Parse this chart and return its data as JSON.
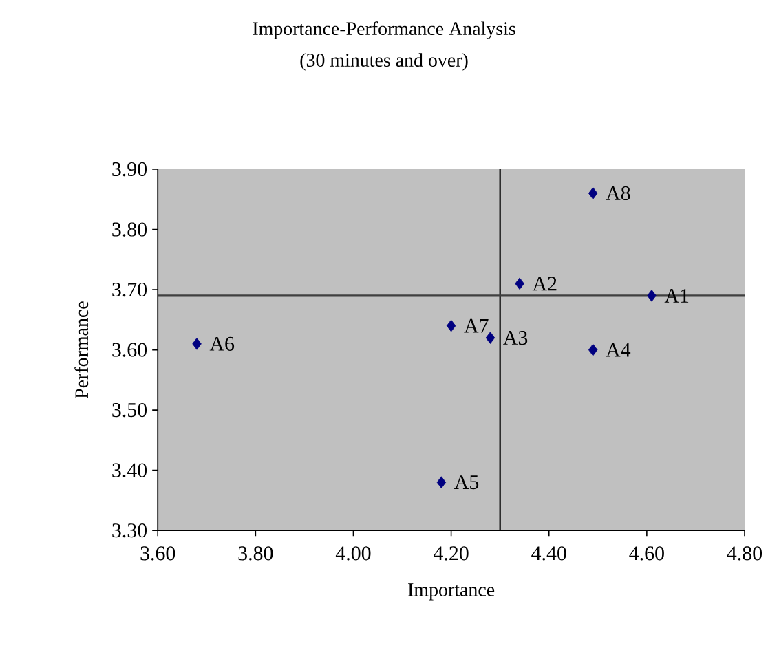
{
  "chart_data": {
    "type": "scatter",
    "title": "Importance-Performance Analysis",
    "subtitle": "(30 minutes and over)",
    "xlabel": "Importance",
    "ylabel": "Performance",
    "x": [
      4.61,
      4.34,
      4.28,
      4.49,
      4.18,
      3.68,
      4.2,
      4.49
    ],
    "values": [
      3.69,
      3.71,
      3.62,
      3.6,
      3.38,
      3.61,
      3.64,
      3.86
    ],
    "color": "#000080",
    "marker": "diamond",
    "xlim": [
      3.6,
      4.8
    ],
    "xticks": [
      {
        "value": 3.6,
        "label": "3.60"
      },
      {
        "value": 3.8,
        "label": "3.80"
      },
      {
        "value": 4.0,
        "label": "4.00"
      },
      {
        "value": 4.2,
        "label": "4.20"
      },
      {
        "value": 4.4,
        "label": "4.40"
      },
      {
        "value": 4.6,
        "label": "4.60"
      },
      {
        "value": 4.8,
        "label": "4.80"
      }
    ],
    "ylim": [
      3.3,
      3.9
    ],
    "yticks": [
      {
        "value": 3.3,
        "label": "3.30"
      },
      {
        "value": 3.4,
        "label": "3.40"
      },
      {
        "value": 3.5,
        "label": "3.50"
      },
      {
        "value": 3.6,
        "label": "3.60"
      },
      {
        "value": 3.7,
        "label": "3.70"
      },
      {
        "value": 3.8,
        "label": "3.80"
      },
      {
        "value": 3.9,
        "label": "3.90"
      }
    ],
    "ref_lines": [
      {
        "axis": "x",
        "value": 4.3,
        "color": "#000000"
      },
      {
        "axis": "y",
        "value": 3.69,
        "color": "#404040"
      }
    ],
    "annotations": [
      {
        "text": "A1",
        "x": 4.61,
        "y": 3.69
      },
      {
        "text": "A2",
        "x": 4.34,
        "y": 3.71
      },
      {
        "text": "A3",
        "x": 4.28,
        "y": 3.62
      },
      {
        "text": "A4",
        "x": 4.49,
        "y": 3.6
      },
      {
        "text": "A5",
        "x": 4.18,
        "y": 3.38
      },
      {
        "text": "A6",
        "x": 3.68,
        "y": 3.61
      },
      {
        "text": "A7",
        "x": 4.2,
        "y": 3.64
      },
      {
        "text": "A8",
        "x": 4.49,
        "y": 3.86
      }
    ]
  }
}
